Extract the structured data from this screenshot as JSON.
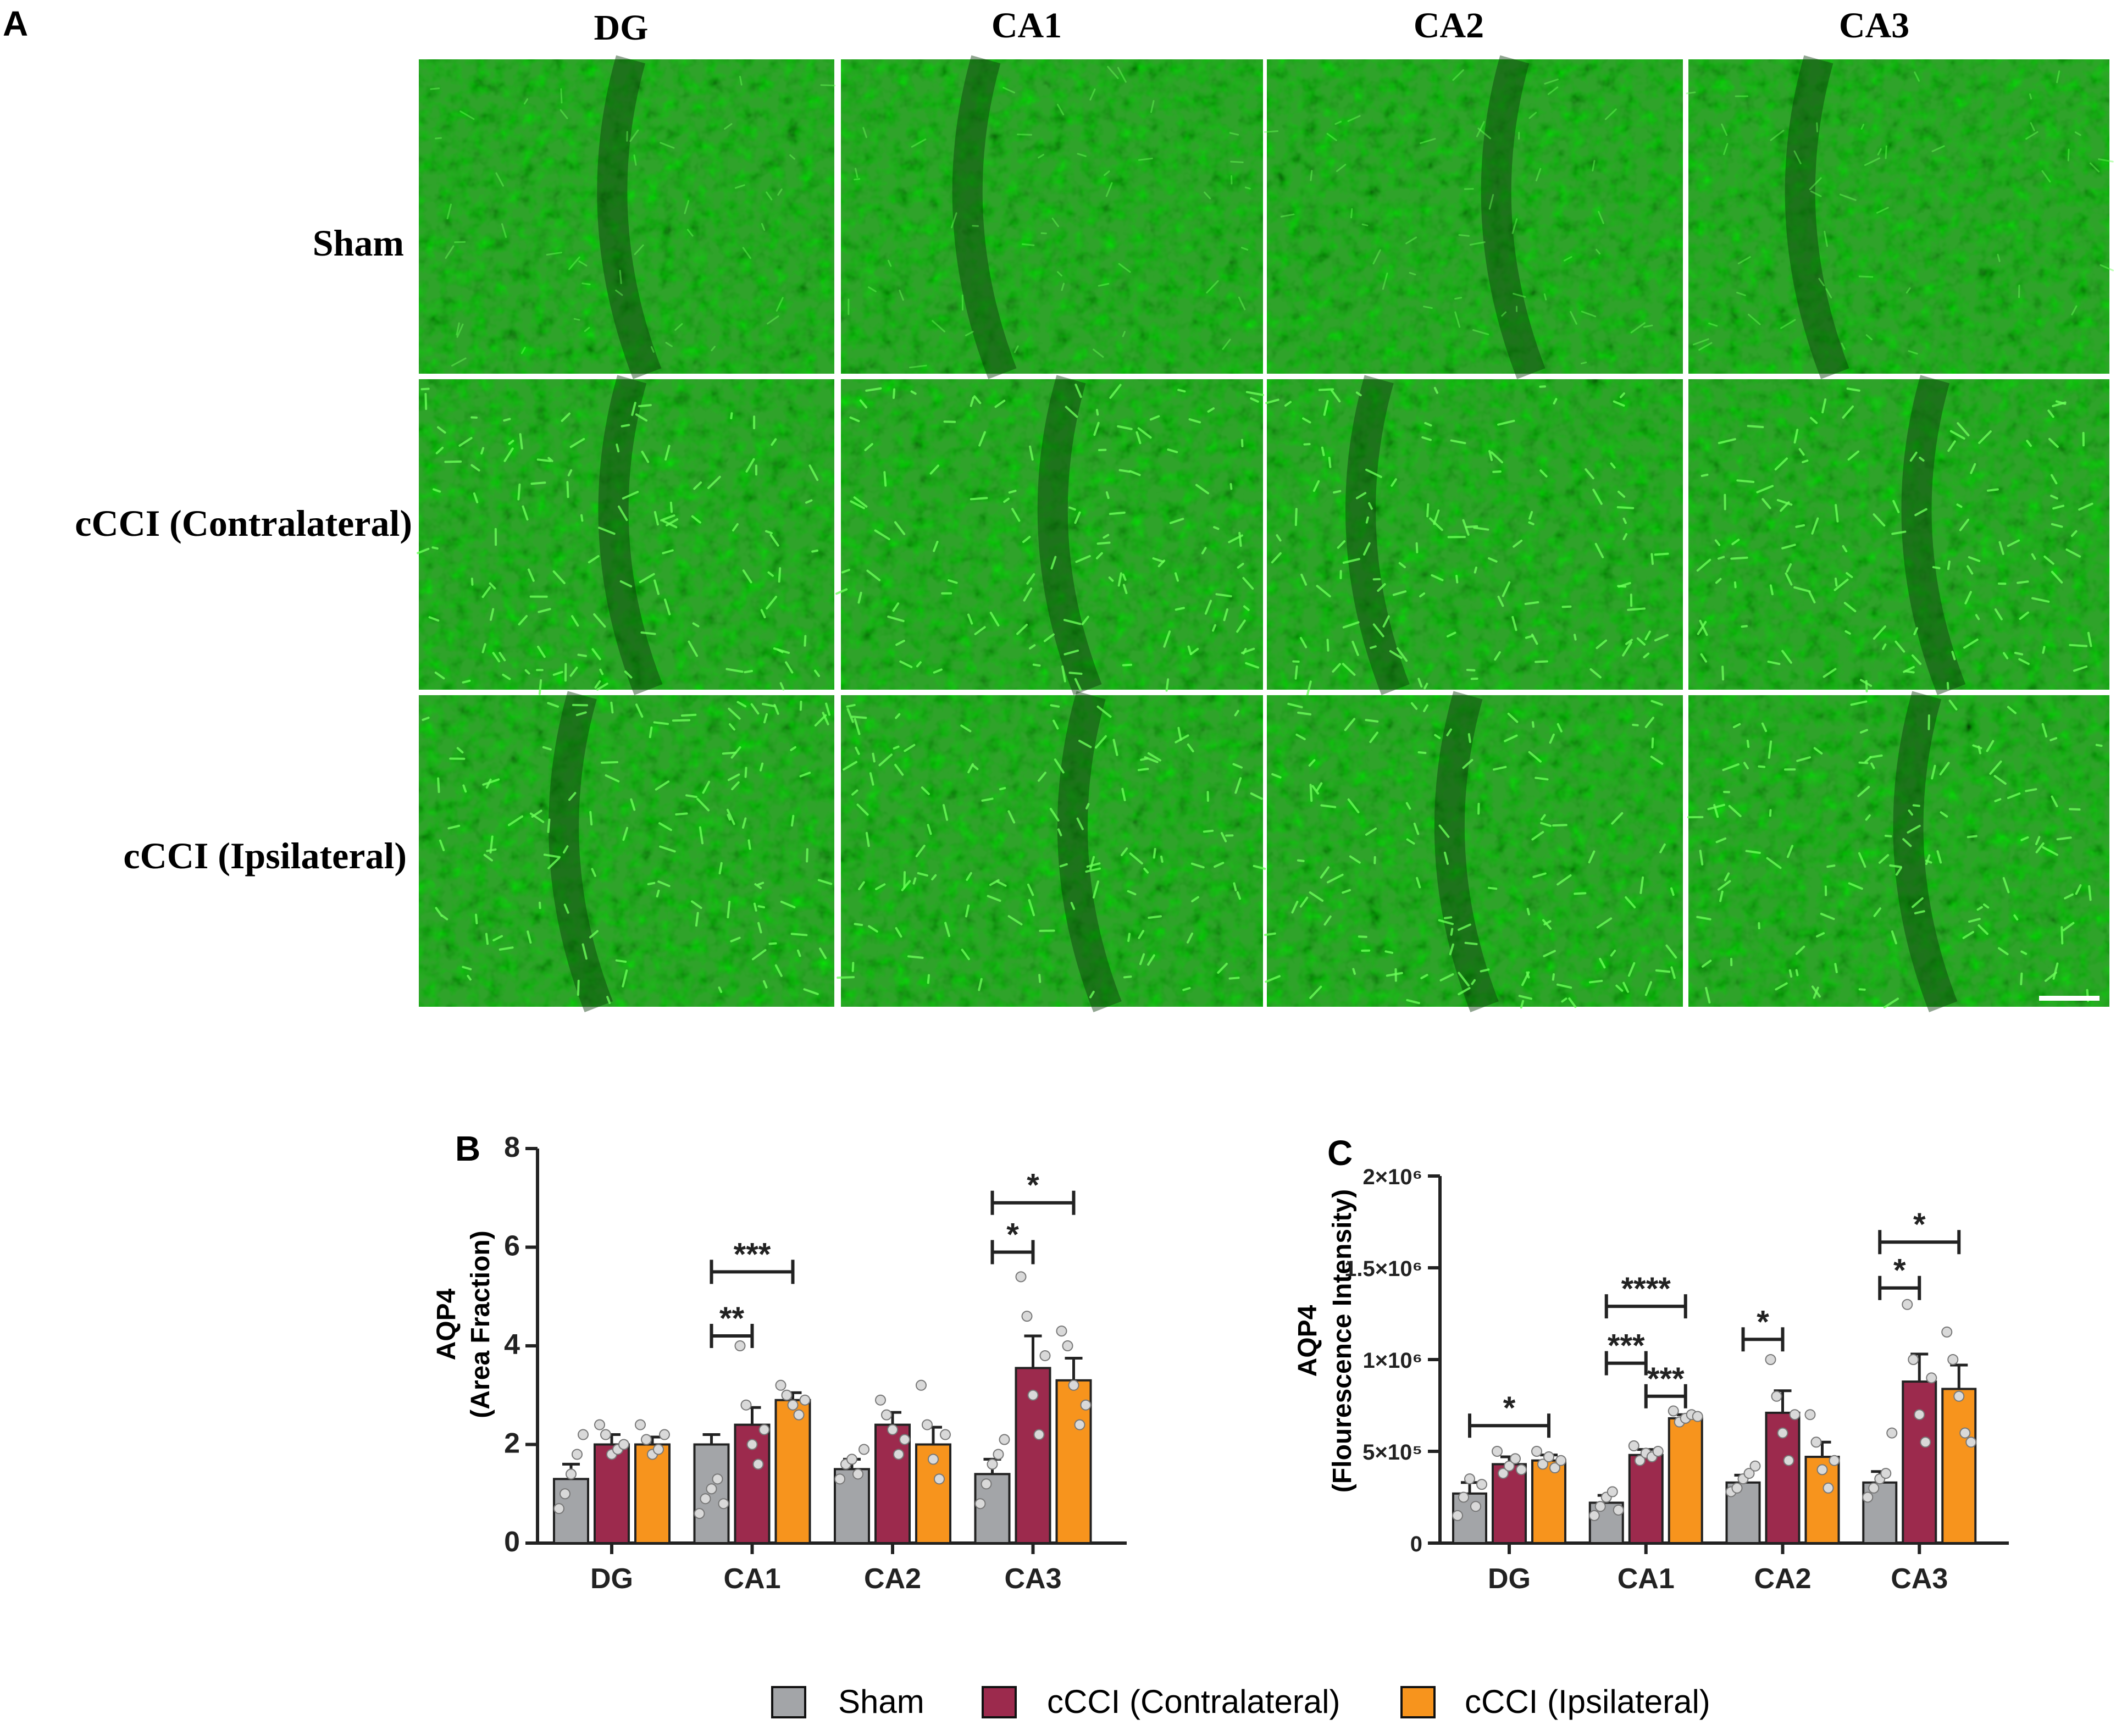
{
  "panel_a": {
    "label": "A",
    "columns": [
      "DG",
      "CA1",
      "CA2",
      "CA3"
    ],
    "rows": [
      "Sham",
      "cCCI (Contralateral)",
      "cCCI (Ipsilateral)"
    ],
    "tissue_color": "#2fa32a",
    "stain_color": "#6cff5a"
  },
  "chart_data": [
    {
      "panel_label": "B",
      "type": "bar",
      "categories": [
        "DG",
        "CA1",
        "CA2",
        "CA3"
      ],
      "ylabel_line1": "AQP4",
      "ylabel_line2": "(Area Fraction)",
      "ylim": [
        0,
        8
      ],
      "yticks": [
        0,
        2,
        4,
        6,
        8
      ],
      "ytick_labels": [
        "0",
        "2",
        "4",
        "6",
        "8"
      ],
      "series": [
        {
          "values": [
            1.3,
            2.0,
            1.5,
            1.4
          ],
          "errors": [
            0.3,
            0.2,
            0.2,
            0.3
          ]
        },
        {
          "values": [
            2.0,
            2.4,
            2.4,
            3.55
          ],
          "errors": [
            0.2,
            0.35,
            0.25,
            0.65
          ]
        },
        {
          "values": [
            2.0,
            2.9,
            2.0,
            3.3
          ],
          "errors": [
            0.15,
            0.15,
            0.35,
            0.45
          ]
        }
      ],
      "points": [
        [
          [
            0.7,
            1.0,
            1.4,
            1.8,
            2.2
          ],
          [
            2.4,
            2.2,
            1.8,
            1.9,
            2.0
          ],
          [
            2.4,
            2.1,
            1.8,
            1.9,
            2.2
          ]
        ],
        [
          [
            0.6,
            0.9,
            1.1,
            1.3,
            0.8
          ],
          [
            4.0,
            2.8,
            2.0,
            1.6,
            2.3
          ],
          [
            3.2,
            3.0,
            2.8,
            2.6,
            2.9
          ]
        ],
        [
          [
            1.3,
            1.6,
            1.7,
            1.4,
            1.9
          ],
          [
            2.9,
            2.6,
            2.3,
            1.8,
            2.1
          ],
          [
            3.2,
            2.4,
            1.7,
            1.3,
            2.2
          ]
        ],
        [
          [
            0.8,
            1.2,
            1.6,
            1.8,
            2.1
          ],
          [
            5.4,
            4.6,
            3.0,
            2.2,
            3.8
          ],
          [
            4.3,
            4.0,
            3.2,
            2.4,
            2.8
          ]
        ]
      ],
      "significance": [
        {
          "category": 1,
          "from": 0,
          "to": 1,
          "y": 4.2,
          "label": "**"
        },
        {
          "category": 1,
          "from": 0,
          "to": 2,
          "y": 5.5,
          "label": "***"
        },
        {
          "category": 3,
          "from": 0,
          "to": 1,
          "y": 5.9,
          "label": "*"
        },
        {
          "category": 3,
          "from": 0,
          "to": 2,
          "y": 6.9,
          "label": "*"
        }
      ]
    },
    {
      "panel_label": "C",
      "type": "bar",
      "categories": [
        "DG",
        "CA1",
        "CA2",
        "CA3"
      ],
      "ylabel_line1": "AQP4",
      "ylabel_line2": "(Flourescence Intensity)",
      "ylim": [
        0,
        2000000
      ],
      "yticks": [
        0,
        500000,
        1000000,
        1500000,
        2000000
      ],
      "ytick_labels": [
        "0",
        "5×10⁵",
        "1×10⁶",
        "1.5×10⁶",
        "2×10⁶"
      ],
      "series": [
        {
          "values": [
            270000,
            220000,
            330000,
            330000
          ],
          "errors": [
            60000,
            40000,
            40000,
            60000
          ]
        },
        {
          "values": [
            430000,
            480000,
            710000,
            880000
          ],
          "errors": [
            40000,
            30000,
            120000,
            150000
          ]
        },
        {
          "values": [
            450000,
            680000,
            470000,
            840000
          ],
          "errors": [
            30000,
            20000,
            80000,
            130000
          ]
        }
      ],
      "points": [
        [
          [
            150000,
            250000,
            350000,
            200000,
            320000
          ],
          [
            500000,
            380000,
            420000,
            460000,
            400000
          ],
          [
            500000,
            430000,
            470000,
            410000,
            450000
          ]
        ],
        [
          [
            150000,
            200000,
            250000,
            280000,
            180000
          ],
          [
            530000,
            450000,
            490000,
            470000,
            500000
          ],
          [
            720000,
            660000,
            680000,
            700000,
            690000
          ]
        ],
        [
          [
            280000,
            300000,
            350000,
            380000,
            420000
          ],
          [
            1000000,
            800000,
            600000,
            450000,
            700000
          ],
          [
            700000,
            550000,
            400000,
            300000,
            450000
          ]
        ],
        [
          [
            250000,
            300000,
            350000,
            380000,
            600000
          ],
          [
            1300000,
            1000000,
            700000,
            550000,
            900000
          ],
          [
            1150000,
            1000000,
            800000,
            600000,
            550000
          ]
        ]
      ],
      "significance": [
        {
          "category": 0,
          "from": 0,
          "to": 2,
          "y": 640000,
          "label": "*"
        },
        {
          "category": 1,
          "from": 0,
          "to": 1,
          "y": 980000,
          "label": "***"
        },
        {
          "category": 1,
          "from": 0,
          "to": 2,
          "y": 1290000,
          "label": "****"
        },
        {
          "category": 1,
          "from": 1,
          "to": 2,
          "y": 800000,
          "label": "***"
        },
        {
          "category": 2,
          "from": 0,
          "to": 1,
          "y": 1110000,
          "label": "*"
        },
        {
          "category": 3,
          "from": 0,
          "to": 1,
          "y": 1390000,
          "label": "*"
        },
        {
          "category": 3,
          "from": 0,
          "to": 2,
          "y": 1640000,
          "label": "*"
        }
      ]
    }
  ],
  "legend": {
    "items": [
      {
        "label": "Sham",
        "color": "#a3a5a8"
      },
      {
        "label": "cCCI (Contralateral)",
        "color": "#9c2a4d"
      },
      {
        "label": "cCCI (Ipsilateral)",
        "color": "#f7941d"
      }
    ]
  }
}
